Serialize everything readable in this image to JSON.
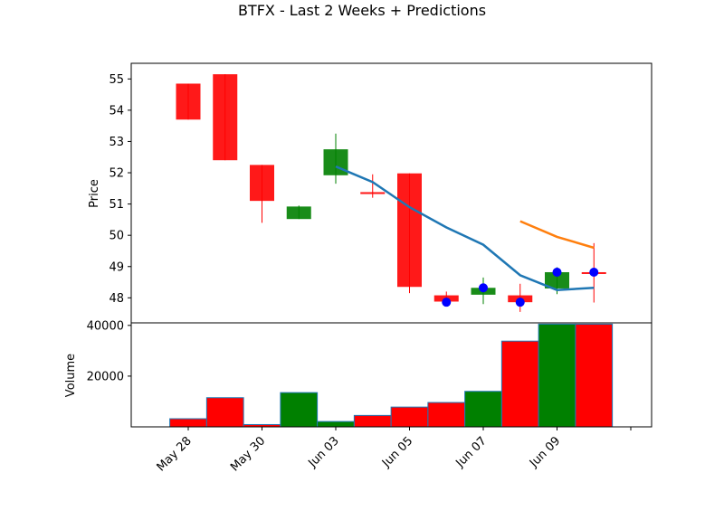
{
  "chart_data": {
    "type": "candlestick",
    "title": "BTFX - Last 2 Weeks + Predictions",
    "ylabel_price": "Price",
    "ylabel_volume": "Volume",
    "ylim_price": [
      47.2,
      55.5
    ],
    "ylim_volume": [
      0,
      41000
    ],
    "price_ticks": [
      48,
      49,
      50,
      51,
      52,
      53,
      54,
      55
    ],
    "volume_ticks": [
      20000,
      40000
    ],
    "x_tick_labels": [
      "May 28",
      "May 30",
      "Jun 03",
      "Jun 05",
      "Jun 07",
      "Jun 09"
    ],
    "x_tick_slots": [
      1,
      3,
      5,
      7,
      9,
      11
    ],
    "candles": [
      {
        "slot": 1,
        "open": 54.85,
        "high": 54.85,
        "low": 53.7,
        "close": 53.7,
        "dir": "down"
      },
      {
        "slot": 2,
        "open": 55.15,
        "high": 55.15,
        "low": 52.4,
        "close": 52.4,
        "dir": "down"
      },
      {
        "slot": 3,
        "open": 52.25,
        "high": 52.25,
        "low": 50.4,
        "close": 51.1,
        "dir": "down"
      },
      {
        "slot": 4,
        "open": 50.52,
        "high": 50.95,
        "low": 50.52,
        "close": 50.92,
        "dir": "up"
      },
      {
        "slot": 5,
        "open": 51.92,
        "high": 53.25,
        "low": 51.65,
        "close": 52.75,
        "dir": "up"
      },
      {
        "slot": 6,
        "open": 51.38,
        "high": 51.95,
        "low": 51.2,
        "close": 51.32,
        "dir": "down"
      },
      {
        "slot": 7,
        "open": 51.98,
        "high": 51.98,
        "low": 48.15,
        "close": 48.35,
        "dir": "down"
      },
      {
        "slot": 8,
        "open": 48.08,
        "high": 48.2,
        "low": 47.85,
        "close": 47.88,
        "dir": "down"
      },
      {
        "slot": 9,
        "open": 48.1,
        "high": 48.65,
        "low": 47.8,
        "close": 48.32,
        "dir": "up"
      },
      {
        "slot": 10,
        "open": 48.08,
        "high": 48.45,
        "low": 47.55,
        "close": 47.86,
        "dir": "down"
      },
      {
        "slot": 11,
        "open": 48.3,
        "high": 48.98,
        "low": 48.12,
        "close": 48.82,
        "dir": "up"
      },
      {
        "slot": 12,
        "open": 48.82,
        "high": 49.75,
        "low": 47.85,
        "close": 48.8,
        "dir": "down"
      }
    ],
    "volume": [
      {
        "slot": 1,
        "value": 3200,
        "dir": "down"
      },
      {
        "slot": 2,
        "value": 11500,
        "dir": "down"
      },
      {
        "slot": 3,
        "value": 900,
        "dir": "down"
      },
      {
        "slot": 4,
        "value": 13500,
        "dir": "up"
      },
      {
        "slot": 5,
        "value": 2100,
        "dir": "up"
      },
      {
        "slot": 6,
        "value": 4500,
        "dir": "down"
      },
      {
        "slot": 7,
        "value": 7800,
        "dir": "down"
      },
      {
        "slot": 8,
        "value": 9600,
        "dir": "down"
      },
      {
        "slot": 9,
        "value": 14000,
        "dir": "up"
      },
      {
        "slot": 10,
        "value": 33800,
        "dir": "down"
      },
      {
        "slot": 11,
        "value": 40500,
        "dir": "up"
      },
      {
        "slot": 12,
        "value": 40500,
        "dir": "down"
      }
    ],
    "series": [
      {
        "color": "#1f77b4",
        "points": [
          [
            5,
            52.2
          ],
          [
            6,
            51.7
          ],
          [
            7,
            50.9
          ],
          [
            8,
            50.25
          ],
          [
            9,
            49.7
          ],
          [
            10,
            48.72
          ],
          [
            11,
            48.25
          ],
          [
            12,
            48.32
          ]
        ]
      },
      {
        "color": "#ff7f0e",
        "points": [
          [
            10,
            50.45
          ],
          [
            11,
            49.95
          ],
          [
            12,
            49.6
          ]
        ]
      }
    ],
    "markers": [
      {
        "slot": 8,
        "value": 47.86
      },
      {
        "slot": 9,
        "value": 48.32
      },
      {
        "slot": 10,
        "value": 47.86
      },
      {
        "slot": 11,
        "value": 48.82
      },
      {
        "slot": 12,
        "value": 48.82
      }
    ],
    "colors": {
      "up": "#008000",
      "down": "#ff0000",
      "marker": "#0000ff",
      "volume_edge": "#1f77b4"
    }
  }
}
